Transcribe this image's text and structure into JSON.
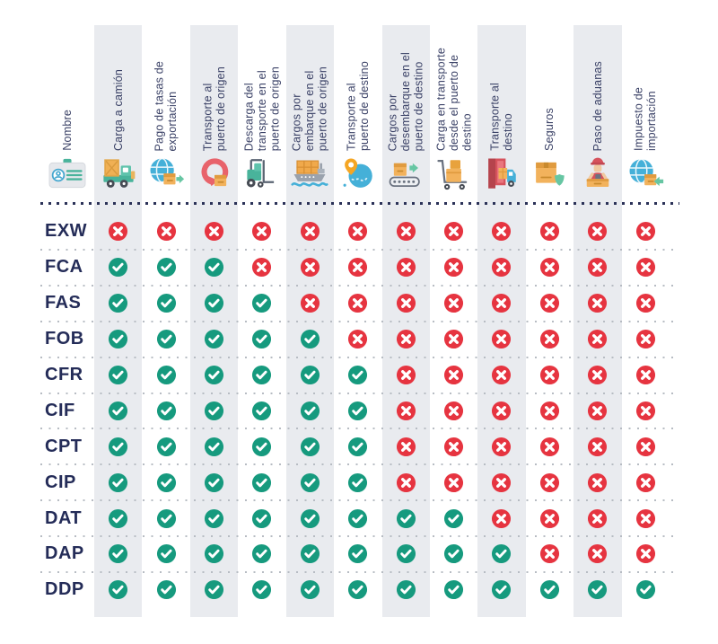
{
  "chart_data": {
    "type": "table",
    "row_header": {
      "label": "Nombre",
      "icon": "id-card-icon"
    },
    "columns": [
      {
        "label": "Carga a camión",
        "icon": "truck-icon",
        "striped": true
      },
      {
        "label": "Pago de tasas de\nexportación",
        "icon": "globe-export-icon",
        "striped": false
      },
      {
        "label": "Transporte al\npuerto de origen",
        "icon": "circular-arrow-icon",
        "striped": true
      },
      {
        "label": "Descarga del\ntransporte en el\npuerto de origen",
        "icon": "forklift-icon",
        "striped": false
      },
      {
        "label": "Cargos por\nembarque en el\npuerto de origen",
        "icon": "cargo-ship-icon",
        "striped": true
      },
      {
        "label": "Transporte al\npuerto de destino",
        "icon": "map-pin-icon",
        "striped": false
      },
      {
        "label": "Cargos por\ndesembarque en el\npuerto de destino",
        "icon": "conveyor-icon",
        "striped": true
      },
      {
        "label": "Carga en transporte\ndesde el puerto de\ndestino",
        "icon": "hand-truck-icon",
        "striped": false
      },
      {
        "label": "Transporte al\ndestino",
        "icon": "delivery-door-icon",
        "striped": true
      },
      {
        "label": "Seguros",
        "icon": "box-shield-icon",
        "striped": false
      },
      {
        "label": "Paso de aduanas",
        "icon": "customs-officer-icon",
        "striped": true
      },
      {
        "label": "Impuesto de\nimportación",
        "icon": "globe-import-icon",
        "striped": false
      }
    ],
    "symbols": {
      "1": "check",
      "0": "cross"
    },
    "rows": [
      {
        "code": "EXW",
        "values": [
          0,
          0,
          0,
          0,
          0,
          0,
          0,
          0,
          0,
          0,
          0,
          0
        ]
      },
      {
        "code": "FCA",
        "values": [
          1,
          1,
          1,
          0,
          0,
          0,
          0,
          0,
          0,
          0,
          0,
          0
        ]
      },
      {
        "code": "FAS",
        "values": [
          1,
          1,
          1,
          1,
          0,
          0,
          0,
          0,
          0,
          0,
          0,
          0
        ]
      },
      {
        "code": "FOB",
        "values": [
          1,
          1,
          1,
          1,
          1,
          0,
          0,
          0,
          0,
          0,
          0,
          0
        ]
      },
      {
        "code": "CFR",
        "values": [
          1,
          1,
          1,
          1,
          1,
          1,
          0,
          0,
          0,
          0,
          0,
          0
        ]
      },
      {
        "code": "CIF",
        "values": [
          1,
          1,
          1,
          1,
          1,
          1,
          0,
          0,
          0,
          0,
          0,
          0
        ]
      },
      {
        "code": "CPT",
        "values": [
          1,
          1,
          1,
          1,
          1,
          1,
          0,
          0,
          0,
          0,
          0,
          0
        ]
      },
      {
        "code": "CIP",
        "values": [
          1,
          1,
          1,
          1,
          1,
          1,
          0,
          0,
          0,
          0,
          0,
          0
        ]
      },
      {
        "code": "DAT",
        "values": [
          1,
          1,
          1,
          1,
          1,
          1,
          1,
          1,
          0,
          0,
          0,
          0
        ]
      },
      {
        "code": "DAP",
        "values": [
          1,
          1,
          1,
          1,
          1,
          1,
          1,
          1,
          1,
          0,
          0,
          0
        ]
      },
      {
        "code": "DDP",
        "values": [
          1,
          1,
          1,
          1,
          1,
          1,
          1,
          1,
          1,
          1,
          1,
          1
        ]
      }
    ],
    "colors": {
      "check": "#169a7e",
      "cross": "#e63440",
      "stripe": "#e9ebef",
      "row_label": "#242c58",
      "header_text": "#3a4166"
    }
  }
}
